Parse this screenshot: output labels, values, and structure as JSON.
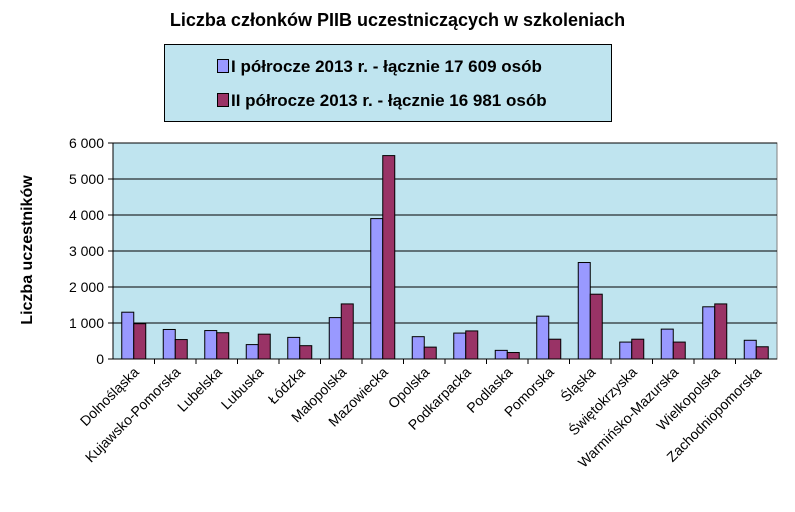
{
  "chart_data": {
    "type": "bar",
    "title": "Liczba członków PIIB uczestniczących w szkoleniach",
    "ylabel": "Liczba uczestników",
    "xlabel": "",
    "ylim": [
      0,
      6000
    ],
    "yticks": [
      0,
      1000,
      2000,
      3000,
      4000,
      5000,
      6000
    ],
    "ytick_labels": [
      "0",
      "1 000",
      "2 000",
      "3 000",
      "4 000",
      "5 000",
      "6 000"
    ],
    "grid": true,
    "legend_position": "top",
    "categories": [
      "Dolnośląska",
      "Kujawsko-Pomorska",
      "Lubelska",
      "Lubuska",
      "Łódzka",
      "Małopolska",
      "Mazowiecka",
      "Opolska",
      "Podkarpacka",
      "Podlaska",
      "Pomorska",
      "Śląska",
      "Świętokrzyska",
      "Warmińsko-Mazurska",
      "Wielkopolska",
      "Zachodniopomorska"
    ],
    "series": [
      {
        "name": "I półrocze 2013 r. - łącznie 17 609 osób",
        "color": "#9999ff",
        "values": [
          1300,
          820,
          790,
          400,
          600,
          1150,
          3900,
          620,
          720,
          240,
          1190,
          2680,
          470,
          830,
          1450,
          520
        ]
      },
      {
        "name": "II półrocze 2013 r. - łącznie 16 981 osób",
        "color": "#993366",
        "values": [
          980,
          540,
          730,
          690,
          370,
          1530,
          5650,
          330,
          780,
          180,
          550,
          1800,
          550,
          470,
          1530,
          340
        ]
      }
    ],
    "colors": {
      "plot_background": "#bfe4ef",
      "legend_background": "#bfe4ef"
    }
  }
}
